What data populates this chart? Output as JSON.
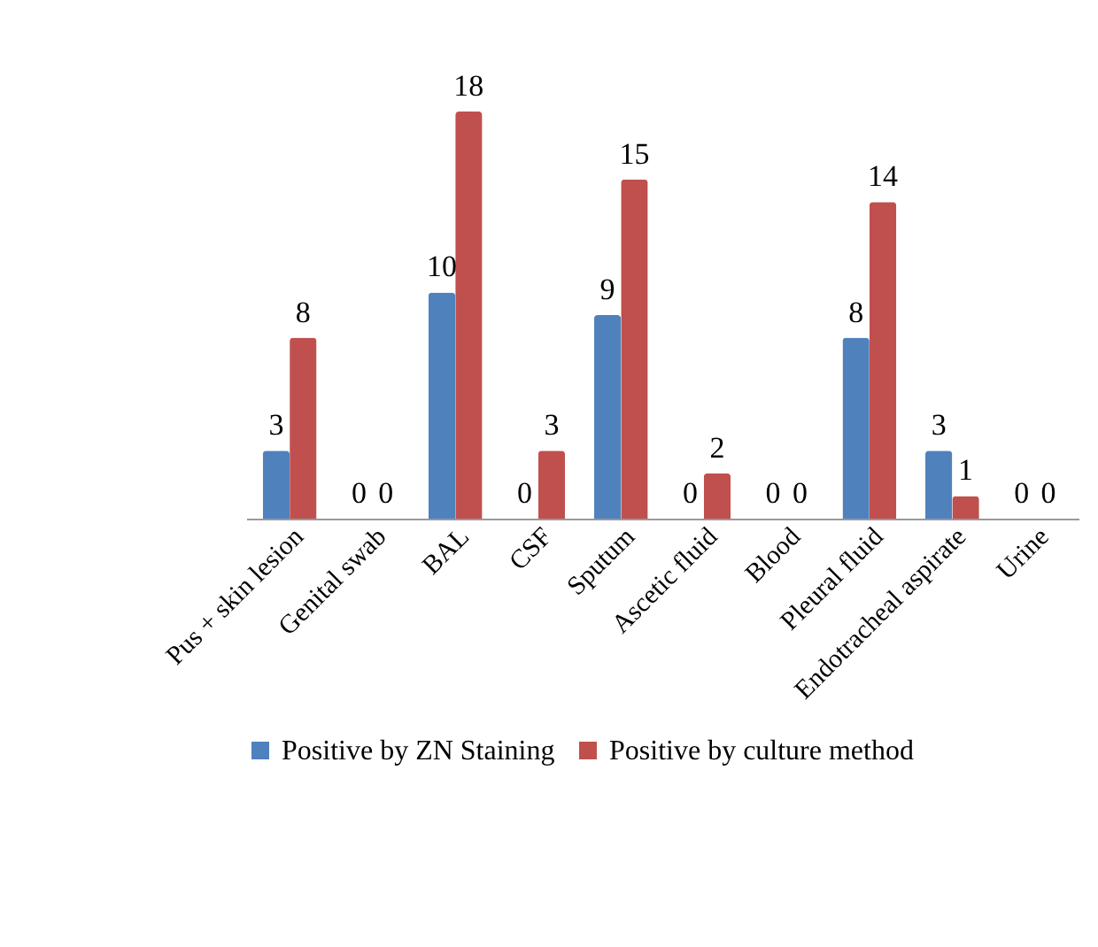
{
  "chart_data": {
    "type": "bar",
    "categories": [
      "Pus + skin lesion",
      "Genital swab",
      "BAL",
      "CSF",
      "Sputum",
      "Ascetic fluid",
      "Blood",
      "Pleural fluid",
      "Endotracheal aspirate",
      "Urine"
    ],
    "series": [
      {
        "name": "Positive by ZN Staining",
        "color": "#4f81bd",
        "values": [
          3,
          0,
          10,
          0,
          9,
          0,
          0,
          8,
          3,
          0
        ]
      },
      {
        "name": "Positive by culture method",
        "color": "#c0504d",
        "values": [
          8,
          0,
          18,
          3,
          15,
          2,
          0,
          14,
          1,
          0
        ]
      }
    ],
    "data_labels": true,
    "legend": "bottom",
    "grid": false
  }
}
